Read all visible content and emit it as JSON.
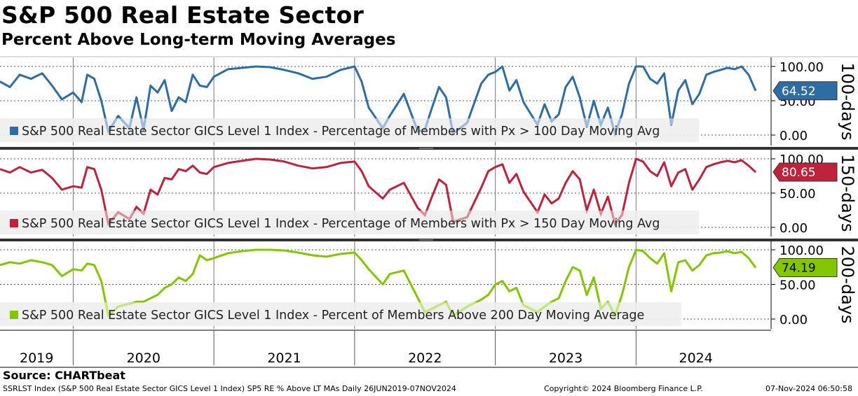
{
  "header": {
    "title": "S&P 500 Real Estate Sector",
    "subtitle": "Percent Above Long-term Moving Averages"
  },
  "source": "Source: CHARTbeat",
  "footer": {
    "ticker": "SSRLST Index (S&P 500 Real Estate Sector GICS Level 1 Index) SP5 RE % Above LT MAs  Daily 26JUN2019-07NOV2024",
    "copyright": "Copyright© 2024 Bloomberg Finance L.P.",
    "timestamp": "07-Nov-2024 06:50:58"
  },
  "colors": {
    "panel1": "#2e6da4",
    "panel2": "#c0223b",
    "panel3": "#84c600",
    "panel1_light": "#9dbad6",
    "panel2_light": "#dc8f9b",
    "panel3_light": "#c3e67d"
  },
  "chart_data": {
    "type": "line",
    "x_start": 2019.48,
    "x_end": 2024.85,
    "years": [
      "2019",
      "2020",
      "2021",
      "2022",
      "2023",
      "2024"
    ],
    "panels": [
      {
        "label": "100-days",
        "legend": "S&P 500 Real Estate Sector GICS Level 1 Index - Percentage of Members with Px > 100 Day Moving Avg",
        "last_value": "64.52",
        "ticks": [
          "100.00",
          "50.00",
          "0.00"
        ],
        "ylim": [
          0,
          100
        ],
        "x": [
          2019.48,
          2019.55,
          2019.62,
          2019.7,
          2019.78,
          2019.85,
          2019.92,
          2020.0,
          2020.06,
          2020.1,
          2020.15,
          2020.2,
          2020.25,
          2020.32,
          2020.4,
          2020.45,
          2020.5,
          2020.55,
          2020.6,
          2020.65,
          2020.7,
          2020.75,
          2020.8,
          2020.85,
          2020.9,
          2020.95,
          2021.0,
          2021.1,
          2021.2,
          2021.3,
          2021.4,
          2021.5,
          2021.6,
          2021.7,
          2021.8,
          2021.9,
          2022.0,
          2022.05,
          2022.1,
          2022.2,
          2022.25,
          2022.35,
          2022.45,
          2022.5,
          2022.55,
          2022.6,
          2022.65,
          2022.7,
          2022.8,
          2022.9,
          2022.95,
          2023.0,
          2023.05,
          2023.1,
          2023.15,
          2023.2,
          2023.3,
          2023.35,
          2023.4,
          2023.45,
          2023.5,
          2023.55,
          2023.6,
          2023.65,
          2023.7,
          2023.75,
          2023.8,
          2023.85,
          2023.9,
          2023.95,
          2024.0,
          2024.05,
          2024.1,
          2024.15,
          2024.2,
          2024.25,
          2024.3,
          2024.35,
          2024.4,
          2024.45,
          2024.5,
          2024.55,
          2024.6,
          2024.65,
          2024.7,
          2024.75,
          2024.8,
          2024.85
        ],
        "y": [
          78,
          70,
          88,
          82,
          90,
          72,
          52,
          62,
          48,
          88,
          82,
          50,
          5,
          28,
          10,
          55,
          8,
          72,
          62,
          80,
          35,
          55,
          48,
          88,
          72,
          70,
          85,
          96,
          98,
          100,
          99,
          95,
          90,
          82,
          85,
          95,
          100,
          78,
          40,
          10,
          28,
          60,
          5,
          8,
          40,
          70,
          55,
          2,
          18,
          75,
          88,
          92,
          100,
          65,
          80,
          48,
          15,
          45,
          20,
          30,
          70,
          85,
          55,
          12,
          50,
          15,
          40,
          2,
          30,
          75,
          100,
          100,
          82,
          75,
          90,
          15,
          65,
          80,
          45,
          60,
          88,
          92,
          95,
          98,
          96,
          100,
          88,
          64.52
        ]
      },
      {
        "label": "150-days",
        "legend": "S&P 500 Real Estate Sector GICS Level 1 Index - Percentage of Members with Px > 150 Day Moving Avg",
        "last_value": "80.65",
        "ticks": [
          "100.00",
          "50.00",
          "0.00"
        ],
        "ylim": [
          0,
          100
        ],
        "x": [
          2019.48,
          2019.55,
          2019.62,
          2019.7,
          2019.78,
          2019.85,
          2019.92,
          2020.0,
          2020.06,
          2020.1,
          2020.15,
          2020.2,
          2020.25,
          2020.32,
          2020.4,
          2020.45,
          2020.5,
          2020.55,
          2020.6,
          2020.65,
          2020.7,
          2020.75,
          2020.8,
          2020.85,
          2020.9,
          2020.95,
          2021.0,
          2021.1,
          2021.2,
          2021.3,
          2021.4,
          2021.5,
          2021.6,
          2021.7,
          2021.8,
          2021.9,
          2022.0,
          2022.05,
          2022.1,
          2022.2,
          2022.25,
          2022.35,
          2022.45,
          2022.5,
          2022.55,
          2022.6,
          2022.65,
          2022.7,
          2022.8,
          2022.9,
          2022.95,
          2023.0,
          2023.05,
          2023.1,
          2023.15,
          2023.2,
          2023.3,
          2023.35,
          2023.4,
          2023.45,
          2023.5,
          2023.55,
          2023.6,
          2023.65,
          2023.7,
          2023.75,
          2023.8,
          2023.85,
          2023.9,
          2023.95,
          2024.0,
          2024.05,
          2024.1,
          2024.15,
          2024.2,
          2024.25,
          2024.3,
          2024.35,
          2024.4,
          2024.45,
          2024.5,
          2024.55,
          2024.6,
          2024.65,
          2024.7,
          2024.75,
          2024.8,
          2024.85
        ],
        "y": [
          85,
          80,
          88,
          80,
          84,
          72,
          55,
          60,
          58,
          88,
          85,
          55,
          5,
          22,
          12,
          30,
          20,
          55,
          48,
          72,
          70,
          85,
          82,
          90,
          80,
          78,
          88,
          94,
          97,
          100,
          99,
          96,
          90,
          86,
          88,
          94,
          96,
          82,
          60,
          42,
          55,
          65,
          28,
          18,
          45,
          70,
          62,
          8,
          15,
          58,
          82,
          88,
          92,
          65,
          78,
          52,
          22,
          48,
          35,
          42,
          65,
          82,
          70,
          25,
          55,
          20,
          45,
          5,
          18,
          65,
          100,
          96,
          82,
          75,
          95,
          60,
          80,
          85,
          55,
          70,
          88,
          92,
          95,
          97,
          95,
          98,
          90,
          80.65
        ]
      },
      {
        "label": "200-days",
        "legend": "S&P 500 Real Estate Sector GICS Level 1 Index - Percent of Members Above 200 Day Moving Average",
        "last_value": "74.19",
        "ticks": [
          "100.00",
          "50.00",
          "0.00"
        ],
        "ylim": [
          0,
          100
        ],
        "x": [
          2019.48,
          2019.55,
          2019.62,
          2019.7,
          2019.78,
          2019.85,
          2019.92,
          2020.0,
          2020.06,
          2020.1,
          2020.15,
          2020.2,
          2020.25,
          2020.32,
          2020.4,
          2020.45,
          2020.5,
          2020.55,
          2020.6,
          2020.65,
          2020.7,
          2020.75,
          2020.8,
          2020.85,
          2020.9,
          2020.95,
          2021.0,
          2021.1,
          2021.2,
          2021.3,
          2021.4,
          2021.5,
          2021.6,
          2021.7,
          2021.8,
          2021.9,
          2022.0,
          2022.05,
          2022.1,
          2022.2,
          2022.25,
          2022.35,
          2022.45,
          2022.5,
          2022.55,
          2022.6,
          2022.65,
          2022.7,
          2022.8,
          2022.9,
          2022.95,
          2023.0,
          2023.05,
          2023.1,
          2023.15,
          2023.2,
          2023.3,
          2023.35,
          2023.4,
          2023.45,
          2023.5,
          2023.55,
          2023.6,
          2023.65,
          2023.7,
          2023.75,
          2023.8,
          2023.85,
          2023.9,
          2023.95,
          2024.0,
          2024.05,
          2024.1,
          2024.15,
          2024.2,
          2024.25,
          2024.3,
          2024.35,
          2024.4,
          2024.45,
          2024.5,
          2024.55,
          2024.6,
          2024.65,
          2024.7,
          2024.75,
          2024.8,
          2024.85
        ],
        "y": [
          78,
          82,
          80,
          85,
          82,
          78,
          62,
          72,
          70,
          80,
          78,
          55,
          5,
          18,
          22,
          25,
          25,
          30,
          35,
          45,
          50,
          60,
          55,
          65,
          92,
          85,
          88,
          95,
          98,
          100,
          100,
          99,
          96,
          92,
          90,
          94,
          96,
          85,
          72,
          50,
          65,
          70,
          30,
          10,
          15,
          20,
          25,
          5,
          18,
          28,
          35,
          50,
          55,
          40,
          45,
          20,
          10,
          18,
          25,
          30,
          55,
          75,
          70,
          35,
          60,
          15,
          25,
          5,
          35,
          75,
          100,
          98,
          88,
          80,
          95,
          40,
          82,
          85,
          70,
          78,
          92,
          95,
          96,
          98,
          95,
          97,
          88,
          74.19
        ]
      }
    ]
  }
}
